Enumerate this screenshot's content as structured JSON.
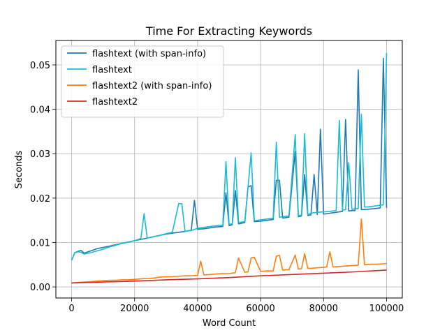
{
  "chart_data": {
    "type": "line",
    "title": "Time For Extracting Keywords",
    "xlabel": "Word Count",
    "ylabel": "Seconds",
    "xlim": [
      -5000,
      105000
    ],
    "ylim": [
      -0.0025,
      0.0555
    ],
    "xticks": [
      0,
      20000,
      40000,
      60000,
      80000,
      100000
    ],
    "xtick_labels": [
      "0",
      "20000",
      "40000",
      "60000",
      "80000",
      "100000"
    ],
    "yticks": [
      0.0,
      0.01,
      0.02,
      0.03,
      0.04,
      0.05
    ],
    "ytick_labels": [
      "0.00",
      "0.01",
      "0.02",
      "0.03",
      "0.04",
      "0.05"
    ],
    "grid": true,
    "legend_position": "top-left",
    "series": [
      {
        "name": "flashtext (with span-info)",
        "color": "#1f77b4",
        "x": [
          0,
          1000,
          2000,
          3000,
          4000,
          6000,
          8000,
          10000,
          12000,
          14000,
          16000,
          18000,
          20000,
          22000,
          24000,
          26000,
          28000,
          30000,
          32000,
          34000,
          36000,
          38000,
          39000,
          40000,
          42000,
          44000,
          46000,
          48000,
          49000,
          50000,
          51000,
          52000,
          53000,
          55000,
          56000,
          57000,
          58000,
          60000,
          62000,
          64000,
          65000,
          66000,
          67000,
          69000,
          71000,
          72000,
          73000,
          74000,
          75000,
          76000,
          77000,
          78000,
          79000,
          80000,
          82000,
          84000,
          85000,
          86000,
          87000,
          88000,
          89000,
          90000,
          91000,
          92000,
          94000,
          96000,
          98000,
          99000,
          100000
        ],
        "values": [
          0.006,
          0.0077,
          0.008,
          0.0082,
          0.0076,
          0.0081,
          0.0086,
          0.0089,
          0.0092,
          0.0095,
          0.0098,
          0.0101,
          0.0104,
          0.0107,
          0.011,
          0.0113,
          0.0116,
          0.0119,
          0.0121,
          0.0123,
          0.0125,
          0.0128,
          0.0195,
          0.013,
          0.0131,
          0.0133,
          0.0135,
          0.0136,
          0.0212,
          0.0138,
          0.014,
          0.0217,
          0.0142,
          0.0145,
          0.0225,
          0.0228,
          0.0147,
          0.0148,
          0.015,
          0.0152,
          0.024,
          0.024,
          0.0155,
          0.0157,
          0.0305,
          0.0158,
          0.016,
          0.0253,
          0.0161,
          0.0162,
          0.0253,
          0.0163,
          0.0355,
          0.0164,
          0.0166,
          0.0168,
          0.0169,
          0.017,
          0.0377,
          0.0171,
          0.0172,
          0.0172,
          0.0489,
          0.0174,
          0.0175,
          0.0176,
          0.0178,
          0.0515,
          0.0178
        ]
      },
      {
        "name": "flashtext",
        "color": "#17becf",
        "x": [
          0,
          1000,
          2000,
          3000,
          4000,
          6000,
          8000,
          10000,
          12000,
          14000,
          16000,
          18000,
          20000,
          22000,
          23000,
          24000,
          26000,
          28000,
          30000,
          32000,
          34000,
          35000,
          36000,
          38000,
          40000,
          42000,
          44000,
          46000,
          48000,
          49000,
          50000,
          51000,
          52000,
          53000,
          55000,
          56000,
          57000,
          58000,
          60000,
          62000,
          64000,
          65000,
          66000,
          67000,
          69000,
          71000,
          72000,
          73000,
          74000,
          75000,
          76000,
          77000,
          78000,
          80000,
          82000,
          84000,
          85000,
          86000,
          87000,
          88000,
          89000,
          90000,
          91000,
          92000,
          93000,
          94000,
          96000,
          98000,
          99000,
          100000
        ],
        "values": [
          0.006,
          0.0077,
          0.0079,
          0.0078,
          0.0074,
          0.0077,
          0.0081,
          0.0085,
          0.009,
          0.0094,
          0.0098,
          0.0101,
          0.0104,
          0.0109,
          0.0165,
          0.011,
          0.0113,
          0.0116,
          0.012,
          0.0123,
          0.0188,
          0.0187,
          0.0125,
          0.0127,
          0.0132,
          0.0134,
          0.0136,
          0.0138,
          0.0139,
          0.0282,
          0.0141,
          0.0142,
          0.0291,
          0.0145,
          0.0147,
          0.0225,
          0.0302,
          0.0149,
          0.0151,
          0.0153,
          0.0155,
          0.0326,
          0.0157,
          0.0158,
          0.016,
          0.0343,
          0.016,
          0.0162,
          0.0345,
          0.0163,
          0.0166,
          0.0167,
          0.0168,
          0.0169,
          0.017,
          0.0172,
          0.0375,
          0.0173,
          0.0174,
          0.028,
          0.0175,
          0.0176,
          0.0176,
          0.0389,
          0.018,
          0.018,
          0.0182,
          0.0184,
          0.0185,
          0.0527
        ]
      },
      {
        "name": "flashtext2 (with span-info)",
        "color": "#ff7f0e",
        "x": [
          0,
          2000,
          4000,
          6000,
          8000,
          10000,
          12000,
          14000,
          16000,
          18000,
          20000,
          22000,
          24000,
          26000,
          28000,
          30000,
          32000,
          34000,
          36000,
          38000,
          40000,
          41000,
          42000,
          44000,
          46000,
          48000,
          50000,
          52000,
          53000,
          55000,
          56000,
          57000,
          58000,
          60000,
          62000,
          64000,
          65000,
          66000,
          67000,
          69000,
          71000,
          72000,
          73000,
          74000,
          75000,
          76000,
          78000,
          80000,
          81000,
          82000,
          83000,
          85000,
          87000,
          89000,
          91000,
          92000,
          93000,
          95000,
          97000,
          99000,
          100000
        ],
        "values": [
          0.0009,
          0.001,
          0.0011,
          0.0012,
          0.0013,
          0.0014,
          0.0015,
          0.0015,
          0.0016,
          0.0016,
          0.0017,
          0.0018,
          0.0019,
          0.002,
          0.0022,
          0.0023,
          0.0023,
          0.0024,
          0.0025,
          0.0025,
          0.0026,
          0.0058,
          0.0027,
          0.0028,
          0.0029,
          0.003,
          0.003,
          0.0032,
          0.0065,
          0.0033,
          0.0034,
          0.0065,
          0.0067,
          0.0035,
          0.0036,
          0.0036,
          0.0069,
          0.0071,
          0.0038,
          0.0039,
          0.0072,
          0.004,
          0.0041,
          0.0075,
          0.0042,
          0.0042,
          0.0043,
          0.0044,
          0.0045,
          0.0079,
          0.0045,
          0.0046,
          0.0047,
          0.0048,
          0.0049,
          0.0153,
          0.005,
          0.0051,
          0.0051,
          0.0052,
          0.0053
        ]
      },
      {
        "name": "flashtext2",
        "color": "#d62728",
        "x": [
          0,
          10000,
          20000,
          30000,
          40000,
          50000,
          60000,
          70000,
          80000,
          90000,
          100000
        ],
        "values": [
          0.0009,
          0.0011,
          0.0013,
          0.0016,
          0.0018,
          0.0021,
          0.0025,
          0.0028,
          0.0031,
          0.0034,
          0.0038
        ]
      }
    ]
  }
}
